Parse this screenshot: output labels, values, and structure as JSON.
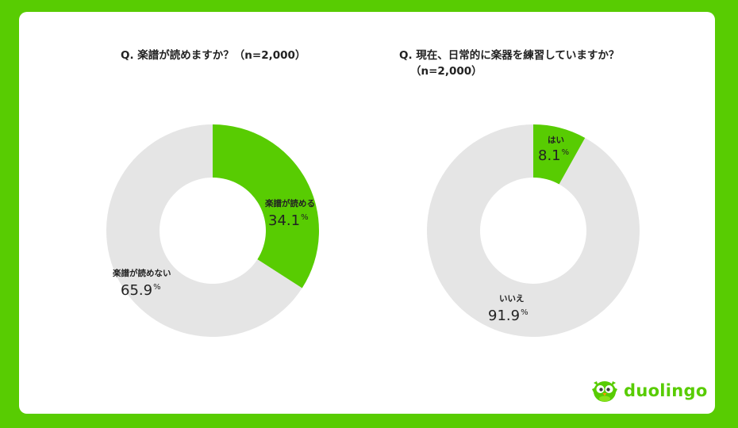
{
  "brand": {
    "name": "duolingo",
    "color": "#58cc02"
  },
  "charts": [
    {
      "title": "Q. 楽譜が読めますか？（n=2,000）",
      "subtitle": ""
    },
    {
      "title": "Q. 現在、日常的に楽器を練習していますか？",
      "subtitle": "（n=2,000）"
    }
  ],
  "chart_data": [
    {
      "type": "pie",
      "title": "Q. 楽譜が読めますか？（n=2,000）",
      "slices": [
        {
          "label": "楽譜が読める",
          "value": 34.1,
          "color": "#58cc02"
        },
        {
          "label": "楽譜が読めない",
          "value": 65.9,
          "color": "#e5e5e5"
        }
      ],
      "unit": "%"
    },
    {
      "type": "pie",
      "title": "Q. 現在、日常的に楽器を練習していますか？（n=2,000）",
      "slices": [
        {
          "label": "はい",
          "value": 8.1,
          "color": "#58cc02"
        },
        {
          "label": "いいえ",
          "value": 91.9,
          "color": "#e5e5e5"
        }
      ],
      "unit": "%"
    }
  ]
}
